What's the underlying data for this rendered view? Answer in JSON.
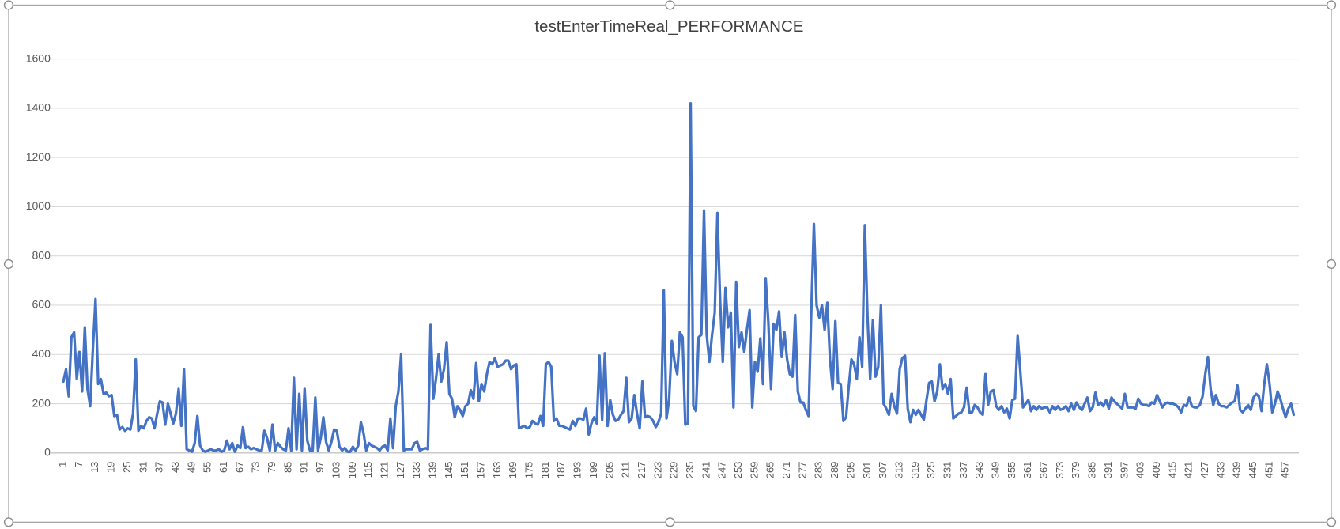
{
  "chart_data": {
    "type": "line",
    "title": "testEnterTimeReal_PERFORMANCE",
    "color": "#4472c4",
    "grid": true,
    "ylim": [
      0,
      1600
    ],
    "yticks": [
      0,
      200,
      400,
      600,
      800,
      1000,
      1200,
      1400,
      1600
    ],
    "categories": [
      "1",
      null,
      null,
      null,
      null,
      null,
      "7",
      null,
      null,
      null,
      null,
      null,
      "13",
      null,
      null,
      null,
      null,
      null,
      "19",
      null,
      null,
      null,
      null,
      null,
      "25",
      null,
      null,
      null,
      null,
      null,
      "31",
      null,
      null,
      null,
      null,
      null,
      "37",
      null,
      null,
      null,
      null,
      null,
      "43",
      null,
      null,
      null,
      null,
      null,
      "49",
      null,
      null,
      null,
      null,
      null,
      "55",
      null,
      null,
      null,
      null,
      null,
      "61",
      null,
      null,
      null,
      null,
      null,
      "67",
      null,
      null,
      null,
      null,
      null,
      "73",
      null,
      null,
      null,
      null,
      null,
      "79",
      null,
      null,
      null,
      null,
      null,
      "85",
      null,
      null,
      null,
      null,
      null,
      "91",
      null,
      null,
      null,
      null,
      null,
      "97",
      null,
      null,
      null,
      null,
      null,
      "103",
      null,
      null,
      null,
      null,
      null,
      "109",
      null,
      null,
      null,
      null,
      null,
      "115",
      null,
      null,
      null,
      null,
      null,
      "121",
      null,
      null,
      null,
      null,
      null,
      "127",
      null,
      null,
      null,
      null,
      null,
      "133",
      null,
      null,
      null,
      null,
      null,
      "139",
      null,
      null,
      null,
      null,
      null,
      "145",
      null,
      null,
      null,
      null,
      null,
      "151",
      null,
      null,
      null,
      null,
      null,
      "157",
      null,
      null,
      null,
      null,
      null,
      "163",
      null,
      null,
      null,
      null,
      null,
      "169",
      null,
      null,
      null,
      null,
      null,
      "175",
      null,
      null,
      null,
      null,
      null,
      "181",
      null,
      null,
      null,
      null,
      null,
      "187",
      null,
      null,
      null,
      null,
      null,
      "193",
      null,
      null,
      null,
      null,
      null,
      "199",
      null,
      null,
      null,
      null,
      null,
      "205",
      null,
      null,
      null,
      null,
      null,
      "211",
      null,
      null,
      null,
      null,
      null,
      "217",
      null,
      null,
      null,
      null,
      null,
      "223",
      null,
      null,
      null,
      null,
      null,
      "229",
      null,
      null,
      null,
      null,
      null,
      "235",
      null,
      null,
      null,
      null,
      null,
      "241",
      null,
      null,
      null,
      null,
      null,
      "247",
      null,
      null,
      null,
      null,
      null,
      "253",
      null,
      null,
      null,
      null,
      null,
      "259",
      null,
      null,
      null,
      null,
      null,
      "265",
      null,
      null,
      null,
      null,
      null,
      "271",
      null,
      null,
      null,
      null,
      null,
      "277",
      null,
      null,
      null,
      null,
      null,
      "283",
      null,
      null,
      null,
      null,
      null,
      "289",
      null,
      null,
      null,
      null,
      null,
      "295",
      null,
      null,
      null,
      null,
      null,
      "301",
      null,
      null,
      null,
      null,
      null,
      "307",
      null,
      null,
      null,
      null,
      null,
      "313",
      null,
      null,
      null,
      null,
      null,
      "319",
      null,
      null,
      null,
      null,
      null,
      "325",
      null,
      null,
      null,
      null,
      null,
      "331",
      null,
      null,
      null,
      null,
      null,
      "337",
      null,
      null,
      null,
      null,
      null,
      "343",
      null,
      null,
      null,
      null,
      null,
      "349",
      null,
      null,
      null,
      null,
      null,
      "355",
      null,
      null,
      null,
      null,
      null,
      "361",
      null,
      null,
      null,
      null,
      null,
      "367",
      null,
      null,
      null,
      null,
      null,
      "373",
      null,
      null,
      null,
      null,
      null,
      "379",
      null,
      null,
      null,
      null,
      null,
      "385",
      null,
      null,
      null,
      null,
      null,
      "391",
      null,
      null,
      null,
      null,
      null,
      "397",
      null,
      null,
      null,
      null,
      null,
      "403",
      null,
      null,
      null,
      null,
      null,
      "409",
      null,
      null,
      null,
      null,
      null,
      "415",
      null,
      null,
      null,
      null,
      null,
      "421",
      null,
      null,
      null,
      null,
      null,
      "427",
      null,
      null,
      null,
      null,
      null,
      "433",
      null,
      null,
      null,
      null,
      null,
      "439",
      null,
      null,
      null,
      null,
      null,
      "445",
      null,
      null,
      null,
      null,
      null,
      "451",
      null,
      null,
      null,
      null,
      null,
      "457",
      null,
      null,
      null
    ],
    "values": [
      290,
      340,
      230,
      470,
      490,
      300,
      410,
      250,
      510,
      260,
      190,
      420,
      625,
      280,
      300,
      240,
      245,
      230,
      235,
      150,
      155,
      95,
      105,
      90,
      100,
      95,
      160,
      380,
      90,
      110,
      100,
      130,
      145,
      140,
      100,
      160,
      210,
      205,
      115,
      200,
      160,
      120,
      160,
      260,
      110,
      340,
      15,
      10,
      5,
      40,
      150,
      30,
      10,
      5,
      10,
      15,
      10,
      10,
      15,
      5,
      10,
      50,
      15,
      40,
      5,
      30,
      20,
      105,
      20,
      25,
      15,
      20,
      15,
      10,
      10,
      90,
      60,
      10,
      115,
      10,
      40,
      25,
      15,
      10,
      100,
      10,
      305,
      15,
      240,
      10,
      260,
      50,
      10,
      10,
      225,
      10,
      60,
      145,
      45,
      10,
      45,
      95,
      90,
      25,
      10,
      20,
      5,
      5,
      25,
      10,
      30,
      125,
      80,
      10,
      40,
      30,
      25,
      20,
      10,
      25,
      30,
      10,
      140,
      20,
      190,
      250,
      400,
      10,
      15,
      15,
      15,
      40,
      45,
      10,
      15,
      20,
      15,
      520,
      220,
      300,
      400,
      290,
      340,
      450,
      240,
      220,
      145,
      190,
      175,
      150,
      190,
      200,
      255,
      220,
      365,
      210,
      280,
      250,
      320,
      370,
      360,
      385,
      350,
      355,
      360,
      375,
      375,
      340,
      355,
      360,
      100,
      105,
      110,
      100,
      105,
      130,
      120,
      115,
      150,
      110,
      360,
      370,
      350,
      130,
      140,
      110,
      110,
      105,
      100,
      95,
      130,
      110,
      140,
      140,
      135,
      180,
      75,
      120,
      145,
      120,
      395,
      135,
      405,
      110,
      215,
      155,
      130,
      135,
      155,
      170,
      305,
      125,
      140,
      235,
      160,
      100,
      290,
      145,
      150,
      145,
      130,
      105,
      125,
      160,
      660,
      140,
      220,
      455,
      370,
      320,
      490,
      470,
      115,
      120,
      1420,
      190,
      170,
      470,
      480,
      985,
      480,
      370,
      480,
      570,
      975,
      620,
      370,
      670,
      510,
      570,
      185,
      695,
      430,
      490,
      410,
      500,
      580,
      185,
      370,
      330,
      465,
      280,
      710,
      530,
      260,
      525,
      500,
      575,
      390,
      490,
      380,
      320,
      310,
      560,
      250,
      205,
      205,
      175,
      150,
      570,
      930,
      600,
      550,
      600,
      500,
      610,
      380,
      260,
      535,
      285,
      280,
      130,
      145,
      270,
      380,
      360,
      300,
      470,
      350,
      925,
      550,
      300,
      540,
      310,
      350,
      600,
      200,
      180,
      155,
      240,
      190,
      160,
      340,
      385,
      395,
      180,
      125,
      175,
      155,
      175,
      155,
      135,
      215,
      285,
      290,
      210,
      250,
      360,
      260,
      280,
      240,
      300,
      140,
      150,
      160,
      165,
      185,
      265,
      165,
      165,
      195,
      185,
      165,
      155,
      320,
      195,
      250,
      255,
      190,
      175,
      190,
      165,
      180,
      140,
      215,
      220,
      475,
      330,
      185,
      200,
      215,
      170,
      190,
      175,
      190,
      180,
      185,
      185,
      165,
      190,
      175,
      190,
      175,
      180,
      190,
      170,
      200,
      175,
      205,
      185,
      175,
      200,
      225,
      170,
      185,
      245,
      195,
      205,
      190,
      215,
      180,
      225,
      210,
      200,
      190,
      180,
      240,
      185,
      185,
      185,
      180,
      220,
      200,
      195,
      195,
      190,
      205,
      200,
      235,
      210,
      185,
      200,
      205,
      200,
      200,
      195,
      185,
      165,
      195,
      190,
      225,
      190,
      185,
      185,
      195,
      230,
      320,
      390,
      260,
      195,
      235,
      200,
      190,
      190,
      185,
      195,
      205,
      210,
      275,
      175,
      165,
      180,
      195,
      175,
      225,
      240,
      230,
      170,
      280,
      360,
      280,
      165,
      200,
      250,
      220,
      180,
      145,
      180,
      200,
      155
    ]
  }
}
